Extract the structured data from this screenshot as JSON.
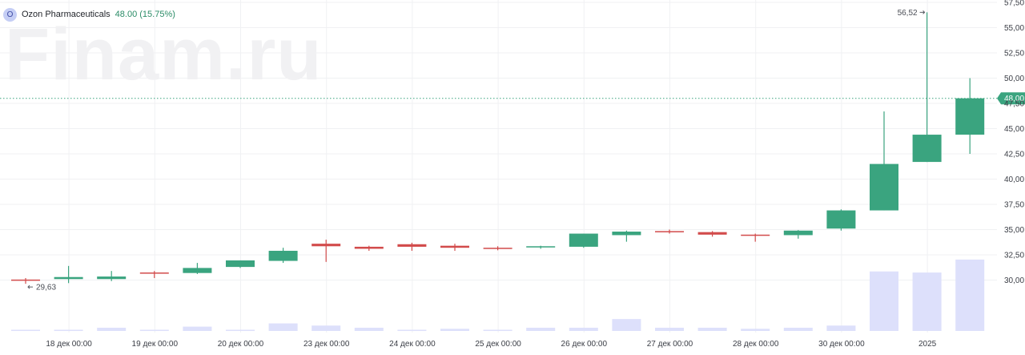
{
  "header": {
    "avatar_letter": "O",
    "name": "Ozon Pharmaceuticals",
    "price": "48.00 (15.75%)"
  },
  "watermark": "Finam.ru",
  "colors": {
    "up": "#3aa47f",
    "down": "#d24b4b",
    "volume": "#dde0fb",
    "price_line": "#3aa47f",
    "grid": "#f0f1f3"
  },
  "chart_data": {
    "type": "candlestick",
    "ylim": [
      27.5,
      57.5
    ],
    "y_ticks": [
      "57,50",
      "55,00",
      "52,50",
      "50,00",
      "47,50",
      "45,00",
      "42,50",
      "40,00",
      "37,50",
      "35,00",
      "32,50",
      "30,00"
    ],
    "x_ticks": [
      "18 дек 00:00",
      "19 дек 00:00",
      "20 дек 00:00",
      "23 дек 00:00",
      "24 дек 00:00",
      "25 дек 00:00",
      "26 дек 00:00",
      "27 дек 00:00",
      "28 дек 00:00",
      "30 дек 00:00",
      "2025"
    ],
    "candles": [
      {
        "o": 30.05,
        "h": 30.2,
        "l": 29.63,
        "c": 30.0,
        "v": 0.1
      },
      {
        "o": 30.1,
        "h": 31.4,
        "l": 29.7,
        "c": 30.3,
        "v": 0.1
      },
      {
        "o": 30.1,
        "h": 30.9,
        "l": 29.9,
        "c": 30.35,
        "v": 0.3
      },
      {
        "o": 30.75,
        "h": 30.9,
        "l": 30.2,
        "c": 30.7,
        "v": 0.1
      },
      {
        "o": 30.7,
        "h": 31.7,
        "l": 30.6,
        "c": 31.2,
        "v": 0.4
      },
      {
        "o": 31.3,
        "h": 31.95,
        "l": 31.2,
        "c": 31.95,
        "v": 0.1
      },
      {
        "o": 31.9,
        "h": 33.2,
        "l": 31.7,
        "c": 32.9,
        "v": 0.7
      },
      {
        "o": 33.6,
        "h": 34.0,
        "l": 31.8,
        "c": 33.35,
        "v": 0.5
      },
      {
        "o": 33.3,
        "h": 33.4,
        "l": 32.9,
        "c": 33.1,
        "v": 0.3
      },
      {
        "o": 33.55,
        "h": 33.7,
        "l": 32.9,
        "c": 33.3,
        "v": 0.1
      },
      {
        "o": 33.4,
        "h": 33.6,
        "l": 32.9,
        "c": 33.2,
        "v": 0.2
      },
      {
        "o": 33.2,
        "h": 33.35,
        "l": 32.95,
        "c": 33.1,
        "v": 0.1
      },
      {
        "o": 33.25,
        "h": 33.4,
        "l": 33.1,
        "c": 33.35,
        "v": 0.3
      },
      {
        "o": 33.3,
        "h": 34.6,
        "l": 33.2,
        "c": 34.6,
        "v": 0.3
      },
      {
        "o": 34.45,
        "h": 34.9,
        "l": 33.8,
        "c": 34.8,
        "v": 1.1
      },
      {
        "o": 34.85,
        "h": 35.0,
        "l": 34.6,
        "c": 34.75,
        "v": 0.3
      },
      {
        "o": 34.75,
        "h": 34.85,
        "l": 34.3,
        "c": 34.5,
        "v": 0.3
      },
      {
        "o": 34.5,
        "h": 34.6,
        "l": 33.8,
        "c": 34.45,
        "v": 0.2
      },
      {
        "o": 34.45,
        "h": 34.95,
        "l": 34.1,
        "c": 34.9,
        "v": 0.3
      },
      {
        "o": 35.1,
        "h": 37.0,
        "l": 34.9,
        "c": 36.9,
        "v": 0.5
      },
      {
        "o": 36.9,
        "h": 46.7,
        "l": 36.9,
        "c": 41.5,
        "v": 5.5
      },
      {
        "o": 41.7,
        "h": 56.52,
        "l": 41.7,
        "c": 44.4,
        "v": 5.4
      },
      {
        "o": 44.4,
        "h": 50.0,
        "l": 42.5,
        "c": 48.0,
        "v": 6.6
      }
    ],
    "current_price": 48.0,
    "current_price_label": "48,00",
    "annotations": {
      "high_label": "56,52",
      "low_label": "29,63"
    }
  }
}
